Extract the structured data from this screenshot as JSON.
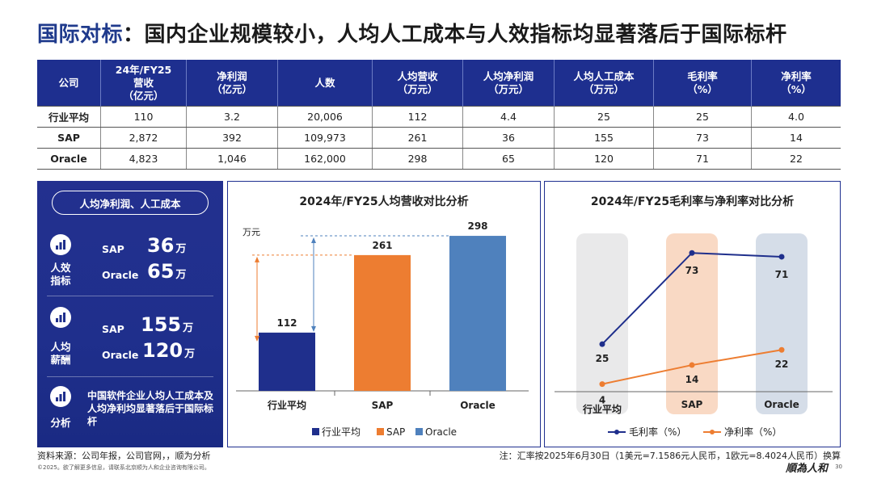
{
  "title": {
    "highlight": "国际对标",
    "rest": "：国内企业规模较小，人均人工成本与人效指标均显著落后于国际标杆"
  },
  "table": {
    "headers": [
      "公司",
      "24年/FY25\n营收\n（亿元）",
      "净利润\n（亿元）",
      "人数",
      "人均营收\n（万元）",
      "人均净利润\n（万元）",
      "人均人工成本\n（万元）",
      "毛利率\n（%）",
      "净利率\n（%）"
    ],
    "rows": [
      [
        "行业平均",
        "110",
        "3.2",
        "20,006",
        "112",
        "4.4",
        "25",
        "25",
        "4.0"
      ],
      [
        "SAP",
        "2,872",
        "392",
        "109,973",
        "261",
        "36",
        "155",
        "73",
        "14"
      ],
      [
        "Oracle",
        "4,823",
        "1,046",
        "162,000",
        "298",
        "65",
        "120",
        "71",
        "22"
      ]
    ]
  },
  "left_panel": {
    "pill": "人均净利润、人工成本",
    "sec1_label": "人效\n指标",
    "sec1_rows": [
      {
        "company": "SAP",
        "value": "36",
        "unit": "万"
      },
      {
        "company": "Oracle",
        "value": "65",
        "unit": "万"
      }
    ],
    "sec2_label": "人均\n薪酬",
    "sec2_rows": [
      {
        "company": "SAP",
        "value": "155",
        "unit": "万"
      },
      {
        "company": "Oracle",
        "value": "120",
        "unit": "万"
      }
    ],
    "sec3_label": "分析",
    "note": "中国软件企业人均人工成本及人均净利均显著落后于国际标杆"
  },
  "chart_data": [
    {
      "type": "bar",
      "title": "2024年/FY25人均营收对比分析",
      "ylabel": "万元",
      "categories": [
        "行业平均",
        "SAP",
        "Oracle"
      ],
      "values": [
        112,
        261,
        298
      ],
      "colors": [
        "#1f2f8c",
        "#ed7d31",
        "#4f81bd"
      ],
      "legend": [
        "行业平均",
        "SAP",
        "Oracle"
      ],
      "ylim": [
        0,
        340
      ]
    },
    {
      "type": "line",
      "title": "2024年/FY25毛利率与净利率对比分析",
      "categories": [
        "行业平均",
        "SAP",
        "Oracle"
      ],
      "series": [
        {
          "name": "毛利率（%）",
          "values": [
            25,
            73,
            71
          ],
          "color": "#1f2f8c"
        },
        {
          "name": "净利率（%）",
          "values": [
            4,
            14,
            22
          ],
          "color": "#ed7d31"
        }
      ],
      "ylim": [
        0,
        85
      ]
    }
  ],
  "footer": {
    "source": "资料来源：公司年报，公司官网，，顺为分析",
    "copyright": "©2025。欲了解更多信息，请联系北京顺为人和企业咨询有限公司。",
    "fx_note": "注：汇率按2025年6月30日（1美元=7.1586元人民币，1欧元=8.4024人民币）换算",
    "logo": "順為人和",
    "page": "30"
  }
}
